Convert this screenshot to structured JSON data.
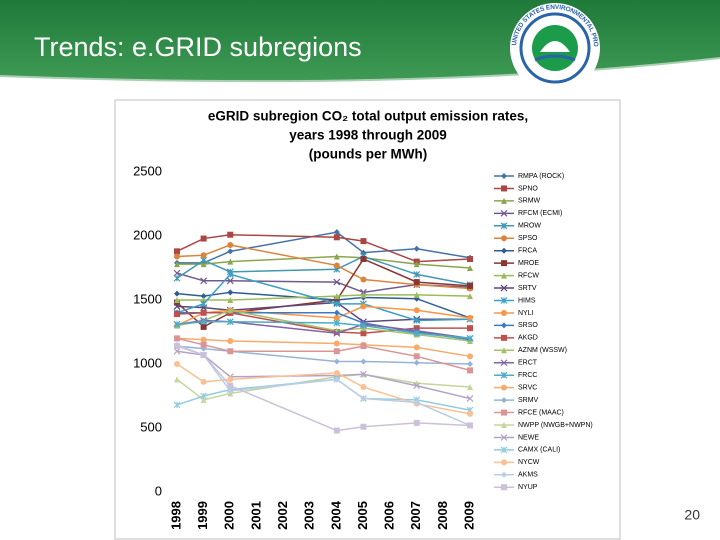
{
  "slide_title": "Trends: e.GRID subregions",
  "logo_text": "UNITED STATES ENVIRONMENTAL PROTECTION AGENCY",
  "page_number": "20",
  "chart_data": {
    "type": "line",
    "title": [
      "eGRID subregion CO₂ total output emission rates,",
      "years 1998 through 2009",
      "(pounds per MWh)"
    ],
    "x": [
      1998,
      1999,
      2000,
      2004,
      2005,
      2007,
      2009
    ],
    "xlim": [
      1998,
      2009
    ],
    "xticks": [
      1998,
      1999,
      2000,
      2001,
      2002,
      2003,
      2004,
      2005,
      2006,
      2007,
      2008,
      2009
    ],
    "ylim": [
      0,
      2500
    ],
    "yticks": [
      0,
      500,
      1000,
      1500,
      2000,
      2500
    ],
    "grid": false,
    "legend": "right",
    "series": [
      {
        "name": "RMPA (ROCK)",
        "color": "#4572a7",
        "values": [
          1790,
          1790,
          1880,
          2030,
          1870,
          1900,
          1830
        ]
      },
      {
        "name": "SPNO",
        "color": "#aa4643",
        "values": [
          1880,
          1980,
          2010,
          1990,
          1960,
          1800,
          1820
        ]
      },
      {
        "name": "SRMW",
        "color": "#89a54e",
        "values": [
          1780,
          1780,
          1800,
          1840,
          1830,
          1780,
          1750
        ]
      },
      {
        "name": "RFCM (ECMI)",
        "color": "#71588f",
        "values": [
          1710,
          1650,
          1650,
          1640,
          1560,
          1620,
          1600
        ]
      },
      {
        "name": "MROW",
        "color": "#4198af",
        "values": [
          1670,
          1810,
          1720,
          1740,
          1840,
          1700,
          1620
        ]
      },
      {
        "name": "SPSO",
        "color": "#db843d",
        "values": [
          1840,
          1850,
          1930,
          1770,
          1660,
          1620,
          1590
        ]
      },
      {
        "name": "FRCA",
        "color": "#2f5d95",
        "values": [
          1550,
          1530,
          1560,
          1500,
          1520,
          1510,
          1360
        ]
      },
      {
        "name": "MROE",
        "color": "#8b3533",
        "values": [
          1480,
          1290,
          1400,
          1500,
          1820,
          1640,
          1610
        ]
      },
      {
        "name": "RFCW",
        "color": "#9bbb59",
        "values": [
          1500,
          1500,
          1500,
          1530,
          1540,
          1540,
          1530
        ]
      },
      {
        "name": "SRTV",
        "color": "#5c4776",
        "values": [
          1450,
          1440,
          1420,
          1480,
          1330,
          1350,
          1350
        ]
      },
      {
        "name": "HIMS",
        "color": "#3aa0c6",
        "values": [
          1400,
          1470,
          1700,
          1470,
          1470,
          1340,
          1350
        ]
      },
      {
        "name": "NYLI",
        "color": "#f79646",
        "values": [
          1300,
          1400,
          1420,
          1360,
          1450,
          1420,
          1360
        ]
      },
      {
        "name": "SRSO",
        "color": "#3a7bc8",
        "values": [
          1400,
          1400,
          1400,
          1400,
          1320,
          1250,
          1190
        ]
      },
      {
        "name": "AKGD",
        "color": "#c0504d",
        "values": [
          1390,
          1400,
          1400,
          1250,
          1240,
          1280,
          1280
        ]
      },
      {
        "name": "AZNM (WSSW)",
        "color": "#a5c26b",
        "values": [
          1300,
          1340,
          1420,
          1260,
          1280,
          1230,
          1180
        ]
      },
      {
        "name": "ERCT",
        "color": "#8064a2",
        "values": [
          1310,
          1340,
          1330,
          1240,
          1310,
          1260,
          1200
        ]
      },
      {
        "name": "FRCC",
        "color": "#4bacc6",
        "values": [
          1310,
          1330,
          1330,
          1320,
          1300,
          1240,
          1200
        ]
      },
      {
        "name": "SRVC",
        "color": "#f9ab6b",
        "values": [
          1200,
          1190,
          1180,
          1160,
          1150,
          1130,
          1060
        ]
      },
      {
        "name": "SRMV",
        "color": "#95b3d7",
        "values": [
          1140,
          1120,
          1100,
          1020,
          1020,
          1010,
          1000
        ]
      },
      {
        "name": "RFCE (MAAC)",
        "color": "#d99694",
        "values": [
          1200,
          1150,
          1100,
          1100,
          1140,
          1060,
          950
        ]
      },
      {
        "name": "NWPP (NWGB+NWPN)",
        "color": "#c3d69b",
        "values": [
          880,
          720,
          770,
          900,
          920,
          850,
          820
        ]
      },
      {
        "name": "NEWE",
        "color": "#b3a2c7",
        "values": [
          1100,
          1070,
          900,
          910,
          920,
          830,
          730
        ]
      },
      {
        "name": "CAMX (CALI)",
        "color": "#93cddd",
        "values": [
          680,
          750,
          800,
          880,
          730,
          720,
          640
        ]
      },
      {
        "name": "NYCW",
        "color": "#fac090",
        "values": [
          1000,
          860,
          880,
          930,
          820,
          690,
          610
        ]
      },
      {
        "name": "AKMS",
        "color": "#b9cde5",
        "values": [
          1150,
          1070,
          790,
          880,
          730,
          700,
          520
        ]
      },
      {
        "name": "NYUP",
        "color": "#ccc1da",
        "values": [
          1140,
          1070,
          830,
          480,
          510,
          540,
          520
        ]
      }
    ]
  }
}
